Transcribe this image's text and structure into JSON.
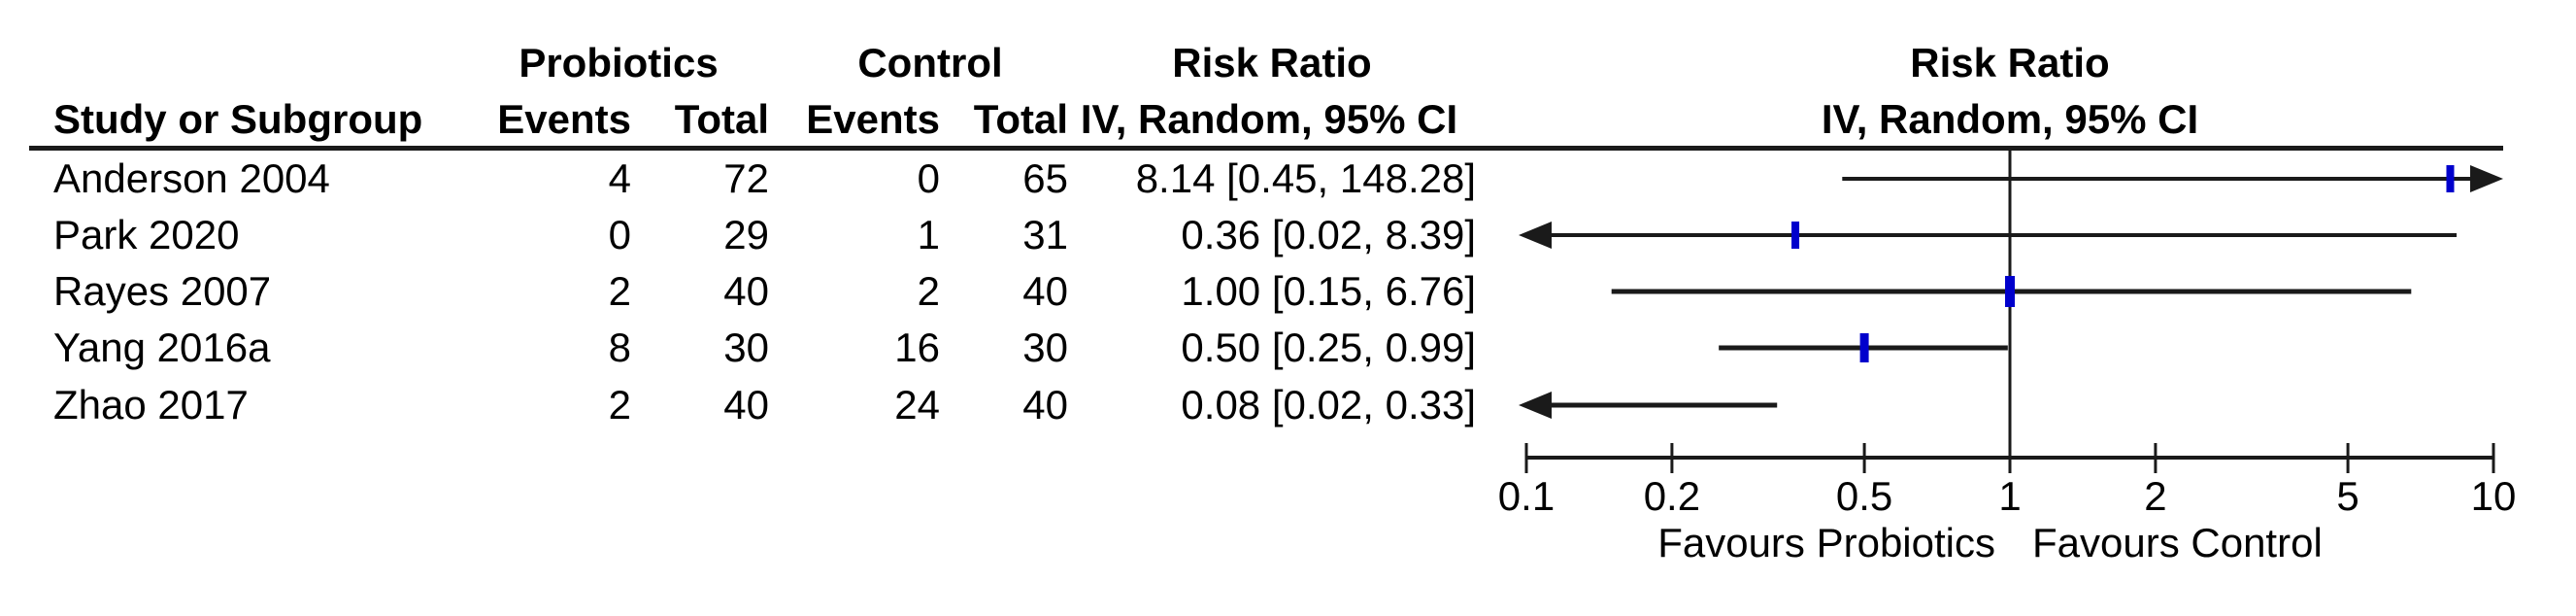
{
  "headers": {
    "study": "Study or Subgroup",
    "group_treat": "Probiotics",
    "group_ctrl": "Control",
    "events": "Events",
    "total": "Total",
    "risk_ratio": "Risk Ratio",
    "method": "IV, Random, 95% CI"
  },
  "colors": {
    "marker": "#0000cc",
    "line": "#1a1a1a",
    "text": "#000000"
  },
  "chart_data": {
    "type": "forest",
    "effect_measure": "Risk Ratio",
    "method": "IV, Random, 95% CI",
    "x_scale": "log10",
    "axis_range": [
      0.1,
      10
    ],
    "axis_ticks": [
      "0.1",
      "0.2",
      "0.5",
      "1",
      "2",
      "5",
      "10"
    ],
    "null_value": 1,
    "favours_left": "Favours Probiotics",
    "favours_right": "Favours Control",
    "studies": [
      {
        "name": "Anderson 2004",
        "events_treat": 4,
        "total_treat": 72,
        "events_ctrl": 0,
        "total_ctrl": 65,
        "estimate": 8.14,
        "ci_low": 0.45,
        "ci_high": 148.28,
        "label": "8.14 [0.45, 148.28]"
      },
      {
        "name": "Park 2020",
        "events_treat": 0,
        "total_treat": 29,
        "events_ctrl": 1,
        "total_ctrl": 31,
        "estimate": 0.36,
        "ci_low": 0.02,
        "ci_high": 8.39,
        "label": "0.36 [0.02, 8.39]"
      },
      {
        "name": "Rayes 2007",
        "events_treat": 2,
        "total_treat": 40,
        "events_ctrl": 2,
        "total_ctrl": 40,
        "estimate": 1.0,
        "ci_low": 0.15,
        "ci_high": 6.76,
        "label": "1.00 [0.15, 6.76]"
      },
      {
        "name": "Yang 2016a",
        "events_treat": 8,
        "total_treat": 30,
        "events_ctrl": 16,
        "total_ctrl": 30,
        "estimate": 0.5,
        "ci_low": 0.25,
        "ci_high": 0.99,
        "label": "0.50 [0.25, 0.99]"
      },
      {
        "name": "Zhao 2017",
        "events_treat": 2,
        "total_treat": 40,
        "events_ctrl": 24,
        "total_ctrl": 40,
        "estimate": 0.08,
        "ci_low": 0.02,
        "ci_high": 0.33,
        "label": "0.08 [0.02, 0.33]"
      }
    ]
  }
}
